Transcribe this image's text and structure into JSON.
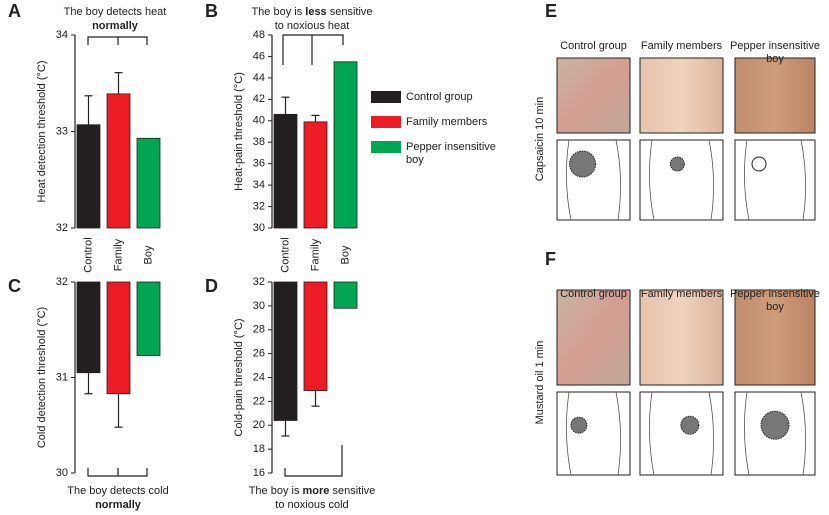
{
  "chart_data": [
    {
      "type": "bar",
      "label": "A",
      "ylabel": "Heat detection threshold (°C)",
      "annotation": [
        [
          {
            "text": "The boy detects heat"
          }
        ],
        [
          {
            "text": "normally",
            "bold": true
          }
        ]
      ],
      "categories": [
        "Control",
        "Family",
        "Boy"
      ],
      "values": [
        33.07,
        33.39,
        32.93
      ],
      "errors": [
        0.3,
        0.22,
        null
      ],
      "ylim": [
        32,
        34
      ],
      "yticks": [
        32,
        33,
        34
      ],
      "bar_origin": "bottom"
    },
    {
      "type": "bar",
      "label": "B",
      "ylabel": "Heat-pain threshold (°C)",
      "annotation": [
        [
          {
            "text": "The boy is "
          },
          {
            "text": "less",
            "bold": true
          },
          {
            "text": " sensitive"
          }
        ],
        [
          {
            "text": "to noxious heat"
          }
        ]
      ],
      "categories": [
        "Control",
        "Family",
        "Boy"
      ],
      "values": [
        40.6,
        39.9,
        45.5
      ],
      "errors": [
        1.6,
        0.6,
        null
      ],
      "ylim": [
        30,
        48
      ],
      "yticks": [
        30,
        32,
        34,
        36,
        38,
        40,
        42,
        44,
        46,
        48
      ],
      "bar_origin": "bottom"
    },
    {
      "type": "bar",
      "label": "C",
      "ylabel": "Cold detection threshold (°C)",
      "annotation": [
        [
          {
            "text": "The boy detects cold"
          }
        ],
        [
          {
            "text": "normally",
            "bold": true
          }
        ]
      ],
      "values": [
        31.05,
        30.83,
        31.23
      ],
      "errors": [
        0.22,
        0.35,
        null
      ],
      "ylim": [
        30,
        32
      ],
      "yticks": [
        30,
        31,
        32
      ],
      "bar_origin": "top"
    },
    {
      "type": "bar",
      "label": "D",
      "ylabel": "Cold-pain threshold (°C)",
      "annotation": [
        [
          {
            "text": "The boy is "
          },
          {
            "text": "more",
            "bold": true
          },
          {
            "text": " sensitive"
          }
        ],
        [
          {
            "text": "to noxious cold"
          }
        ]
      ],
      "values": [
        20.4,
        22.9,
        29.8
      ],
      "errors": [
        1.3,
        1.3,
        null
      ],
      "ylim": [
        16,
        32
      ],
      "yticks": [
        16,
        18,
        20,
        22,
        24,
        26,
        28,
        30,
        32
      ],
      "bar_origin": "top"
    }
  ],
  "legend": [
    {
      "name": "Control group",
      "color": "#231f20"
    },
    {
      "name": "Family members",
      "color": "#ed1c24"
    },
    {
      "name": "Pepper insensitive boy",
      "color": "#00a651"
    }
  ],
  "photo_panels": [
    {
      "label": "E",
      "row_label": "Capsaicin 10 min",
      "columns": [
        "Control group",
        "Family members",
        "Pepper insensitive boy"
      ]
    },
    {
      "label": "F",
      "row_label": "Mustard oil 1 min",
      "columns": [
        "Control group",
        "Family members",
        "Pepper insensitive boy"
      ]
    }
  ]
}
